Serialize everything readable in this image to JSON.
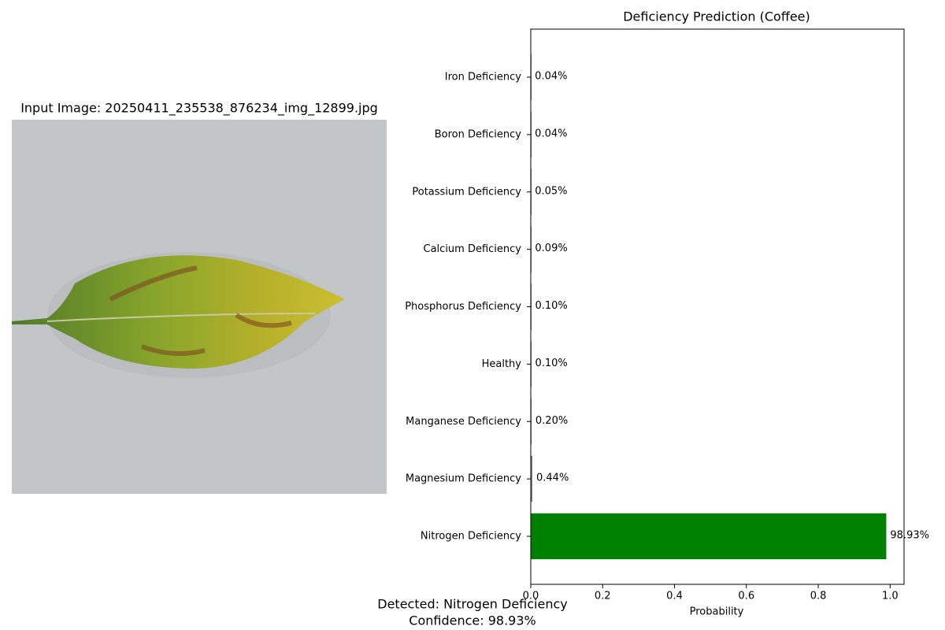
{
  "image_panel": {
    "title": "Input Image: 20250411_235538_876234_img_12899.jpg"
  },
  "chart_data": {
    "type": "barh",
    "title": "Deficiency Prediction (Coffee)",
    "x_label": "Probability",
    "categories": [
      "Iron Deficiency",
      "Boron Deficiency",
      "Potassium Deficiency",
      "Calcium Deficiency",
      "Phosphorus Deficiency",
      "Healthy",
      "Manganese Deficiency",
      "Magnesium Deficiency",
      "Nitrogen Deficiency"
    ],
    "values": [
      0.0004,
      0.0004,
      0.0005,
      0.0009,
      0.001,
      0.001,
      0.002,
      0.0044,
      0.9893
    ],
    "value_labels": [
      "0.04%",
      "0.04%",
      "0.05%",
      "0.09%",
      "0.10%",
      "0.10%",
      "0.20%",
      "0.44%",
      "98.93%"
    ],
    "colors": [
      "gray",
      "gray",
      "gray",
      "gray",
      "gray",
      "gray",
      "gray",
      "gray",
      "green"
    ],
    "xlim": [
      0,
      1.0388
    ],
    "xticks": [
      {
        "value": 0,
        "label": "0.0"
      },
      0.2,
      0.4,
      0.6,
      0.8,
      {
        "value": 1,
        "label": "1.0"
      }
    ]
  },
  "footer": {
    "lines": [
      "Detected: Nitrogen Deficiency",
      "Confidence: 98.93%"
    ]
  }
}
